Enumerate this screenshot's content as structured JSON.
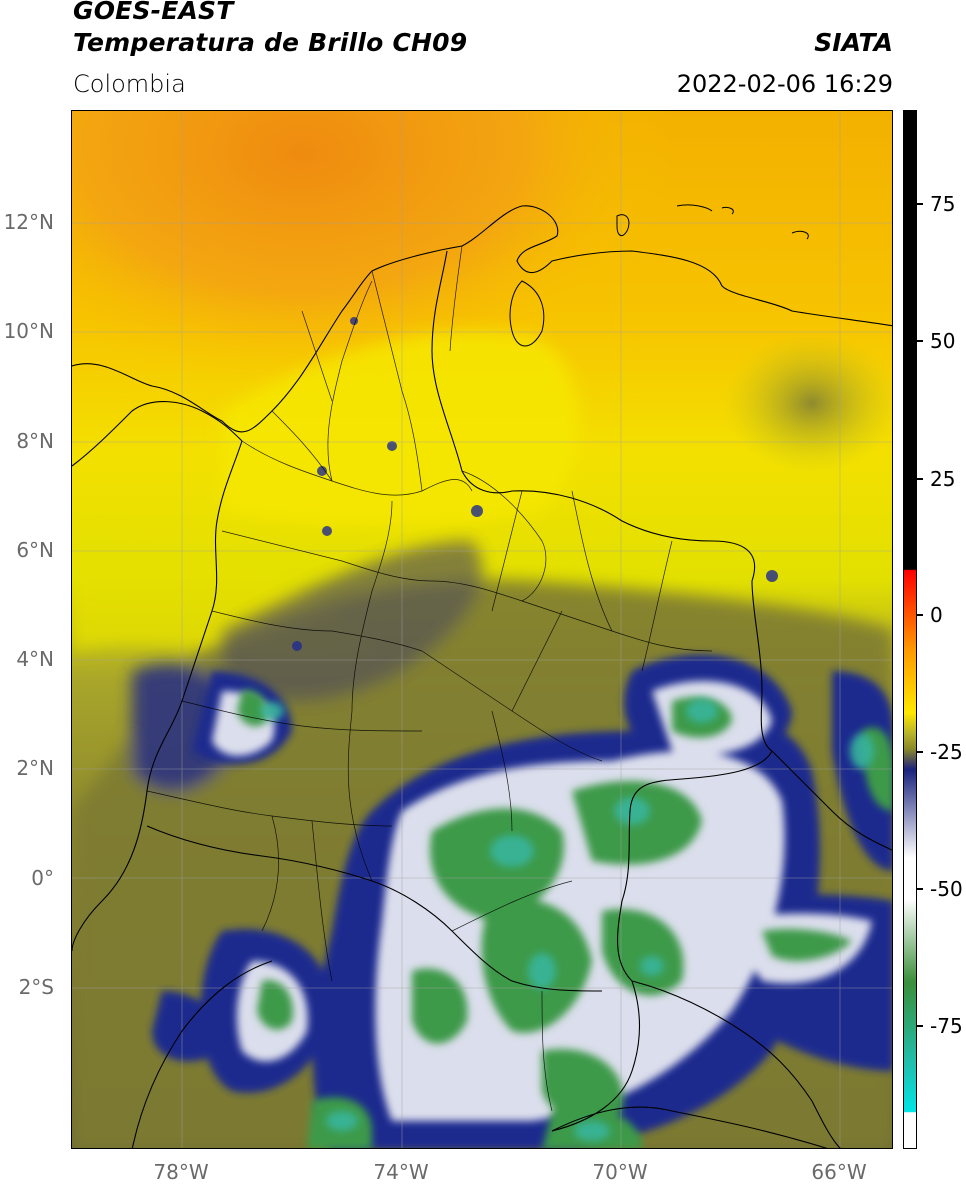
{
  "header": {
    "title_line1": "GOES-EAST",
    "title_line2": "Temperatura de Brillo CH09",
    "brand": "SIATA",
    "region": "Colombia",
    "datetime": "2022-02-06 16:29"
  },
  "map": {
    "latitude_labels": [
      "12°N",
      "10°N",
      "8°N",
      "6°N",
      "4°N",
      "2°N",
      "0°",
      "2°S"
    ],
    "longitude_labels": [
      "78°W",
      "74°W",
      "70°W",
      "66°W"
    ],
    "colors": {
      "north_warm": "#f39a14",
      "orange": "#f6b800",
      "yellow": "#f4ec00",
      "olive": "#9e9a28",
      "dark_olive": "#6f6b34",
      "navy": "#1f2b8e",
      "white_cloud": "#e6e8f2",
      "green_core": "#3d9a4a",
      "cyan_core": "#37b59c"
    }
  },
  "colorbar": {
    "labels": [
      "75",
      "50",
      "25",
      "0",
      "-25",
      "-50",
      "-75"
    ],
    "colors": [
      "#000000",
      "#ff0000",
      "#ff9a00",
      "#ffe800",
      "#8a8a2a",
      "#555555",
      "#1a237e",
      "#ffffff",
      "#3a8f3a",
      "#20c0b0",
      "#00e5e5",
      "#ffffff"
    ]
  }
}
